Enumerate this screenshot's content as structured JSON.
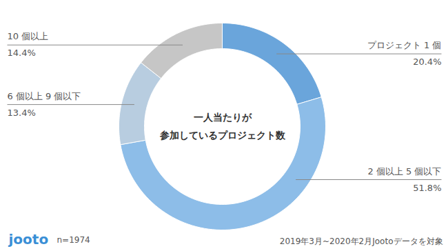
{
  "chart_data": {
    "type": "pie",
    "title": "一人当たりが\n参加しているプロジェクト数",
    "categories": [
      "プロジェクト 1 個",
      "2 個以上 5 個以下",
      "6 個以上 9 個以下",
      "10 個以上"
    ],
    "values": [
      20.4,
      51.8,
      13.4,
      14.4
    ],
    "value_labels": [
      "20.4%",
      "51.8%",
      "13.4%",
      "14.4%"
    ],
    "colors": [
      "#6aa5db",
      "#8dbde8",
      "#b8cde0",
      "#c6c6c6"
    ],
    "data_labels": true,
    "annotations": [
      "jooto",
      "n=1974",
      "2019年3月~2020年2月Jootoデータを対象"
    ]
  }
}
